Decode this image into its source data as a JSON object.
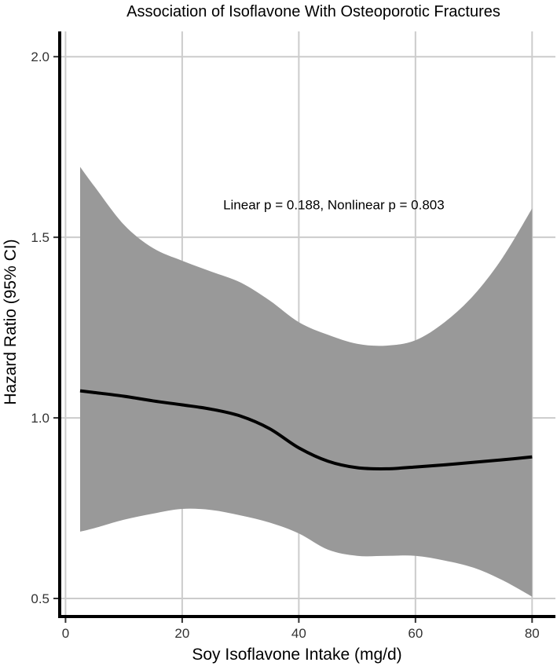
{
  "chart_data": {
    "type": "line",
    "title": "Association of Isoflavone With Osteoporotic Fractures",
    "xlabel": "Soy Isoflavone Intake (mg/d)",
    "ylabel": "Hazard Ratio (95% CI)",
    "xlim": [
      -1,
      84
    ],
    "ylim": [
      0.45,
      2.07
    ],
    "x_ticks": [
      0,
      20,
      40,
      60,
      80
    ],
    "y_ticks": [
      0.5,
      1.0,
      1.5,
      2.0
    ],
    "x_tick_labels": [
      "0",
      "20",
      "40",
      "60",
      "80"
    ],
    "y_tick_labels": [
      "0.5",
      "1.0",
      "1.5",
      "2.0"
    ],
    "grid": true,
    "annotation": {
      "text": "Linear p = 0.188, Nonlinear p = 0.803",
      "x": 46,
      "y": 1.59
    },
    "series": [
      {
        "x": [
          2.5,
          5,
          10,
          15,
          20,
          25,
          30,
          35,
          40,
          45,
          50,
          55,
          60,
          65,
          70,
          75,
          80
        ],
        "y": [
          1.075,
          1.07,
          1.06,
          1.047,
          1.036,
          1.024,
          1.005,
          0.97,
          0.917,
          0.88,
          0.862,
          0.859,
          0.864,
          0.87,
          0.877,
          0.884,
          0.892
        ],
        "lower": [
          0.685,
          0.695,
          0.718,
          0.735,
          0.748,
          0.745,
          0.73,
          0.71,
          0.68,
          0.635,
          0.618,
          0.618,
          0.618,
          0.605,
          0.585,
          0.55,
          0.505
        ],
        "upper": [
          1.695,
          1.64,
          1.535,
          1.47,
          1.435,
          1.405,
          1.375,
          1.325,
          1.265,
          1.23,
          1.205,
          1.2,
          1.215,
          1.265,
          1.34,
          1.445,
          1.58
        ]
      }
    ],
    "colors": {
      "line": "#000000",
      "ci_band": "#999999",
      "grid": "#cccccc",
      "axis": "#000000"
    }
  }
}
